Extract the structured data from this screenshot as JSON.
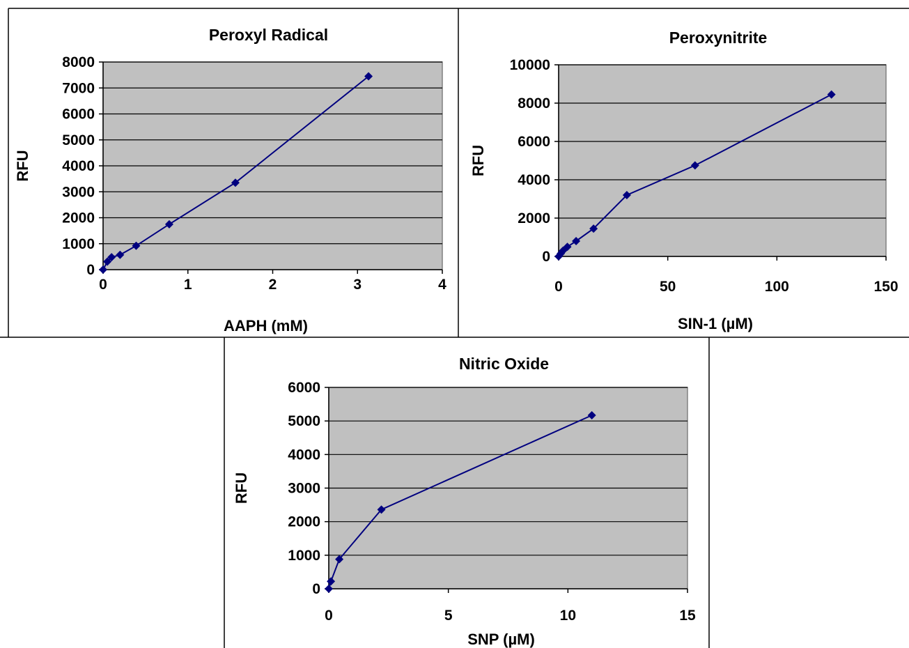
{
  "chart_data": [
    {
      "type": "line",
      "title": "Peroxyl Radical",
      "xlabel": "AAPH (mM)",
      "ylabel": "RFU",
      "xlim": [
        0,
        4
      ],
      "ylim": [
        0,
        8000
      ],
      "xticks": [
        0,
        1,
        2,
        3,
        4
      ],
      "yticks": [
        0,
        1000,
        2000,
        3000,
        4000,
        5000,
        6000,
        7000,
        8000
      ],
      "grid": true,
      "series": [
        {
          "x": [
            0,
            0.05,
            0.1,
            0.2,
            0.39,
            0.78,
            1.56,
            3.13
          ],
          "y": [
            0,
            310,
            480,
            570,
            920,
            1750,
            3350,
            7450
          ]
        }
      ]
    },
    {
      "type": "line",
      "title": "Peroxynitrite",
      "xlabel": "SIN-1 (µM)",
      "ylabel": "RFU",
      "xlim": [
        0,
        150
      ],
      "ylim": [
        0,
        10000
      ],
      "xticks": [
        0,
        50,
        100,
        150
      ],
      "yticks": [
        0,
        2000,
        4000,
        6000,
        8000,
        10000
      ],
      "grid": true,
      "series": [
        {
          "x": [
            0,
            1,
            2,
            4,
            8,
            16,
            31.25,
            62.5,
            125
          ],
          "y": [
            0,
            150,
            300,
            500,
            800,
            1450,
            3200,
            4750,
            8450
          ]
        }
      ]
    },
    {
      "type": "line",
      "title": "Nitric Oxide",
      "xlabel": "SNP (µM)",
      "ylabel": "RFU",
      "xlim": [
        0,
        15
      ],
      "ylim": [
        0,
        6000
      ],
      "xticks": [
        0,
        5,
        10,
        15
      ],
      "yticks": [
        0,
        1000,
        2000,
        3000,
        4000,
        5000,
        6000
      ],
      "grid": true,
      "series": [
        {
          "x": [
            0,
            0.09,
            0.44,
            2.2,
            11
          ],
          "y": [
            0,
            220,
            880,
            2360,
            5170
          ]
        }
      ]
    }
  ]
}
